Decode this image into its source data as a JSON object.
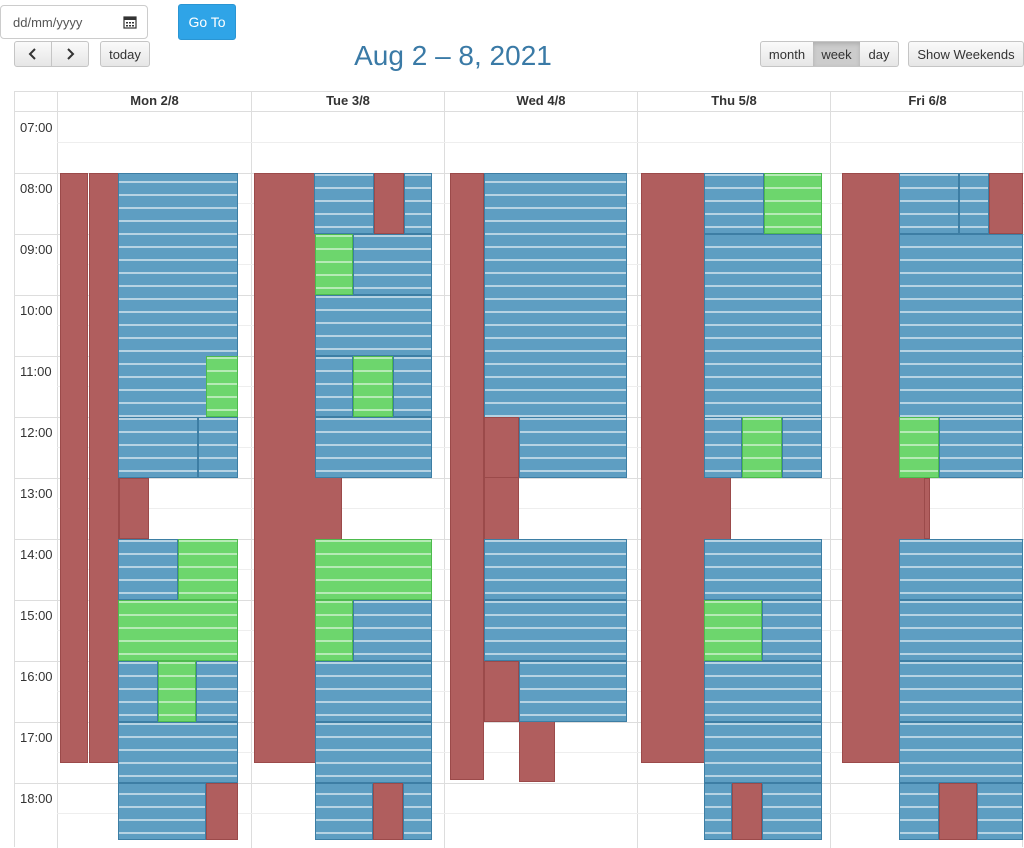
{
  "toolbar": {
    "date_placeholder": "dd/mm/yyyy",
    "goto_label": "Go To",
    "prev_label": "‹",
    "next_label": "›",
    "today_label": "today",
    "title": "Aug 2 – 8, 2021",
    "view_month": "month",
    "view_week": "week",
    "view_day": "day",
    "active_view": "week",
    "weekends_label": "Show Weekends"
  },
  "days": [
    "Mon 2/8",
    "Tue 3/8",
    "Wed 4/8",
    "Thu 5/8",
    "Fri 6/8"
  ],
  "times": [
    "07:00",
    "08:00",
    "09:00",
    "10:00",
    "11:00",
    "12:00",
    "13:00",
    "14:00",
    "15:00",
    "16:00",
    "17:00",
    "18:00"
  ],
  "colors": {
    "red": "#b05e5e",
    "blue": "#5e9ec2",
    "green": "#6dd66d",
    "accent": "#2fa4e7",
    "title": "#3a7aa6"
  },
  "note": "Event titles are blurred/illegible in the screenshot; events rendered as colored blocks only."
}
